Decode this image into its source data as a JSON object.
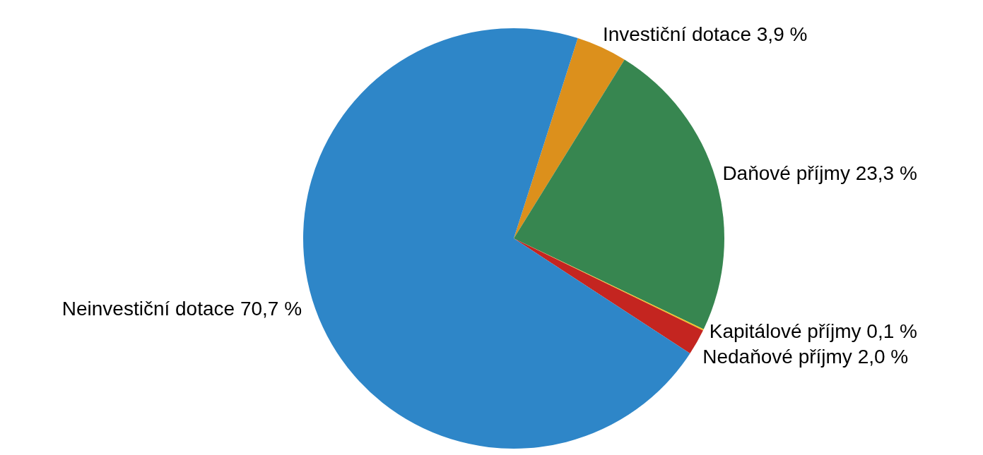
{
  "chart_data": {
    "type": "pie",
    "categories": [
      "Investiční dotace",
      "Daňové příjmy",
      "Kapitálové příjmy",
      "Nedaňové příjmy",
      "Neinvestiční dotace"
    ],
    "values": [
      3.9,
      23.3,
      0.1,
      2.0,
      70.7
    ],
    "value_labels": [
      "3,9 %",
      "23,3 %",
      "0,1 %",
      "2,0 %",
      "70,7 %"
    ],
    "colors": [
      "#dc901c",
      "#378650",
      "#f2c01e",
      "#c42520",
      "#2e86c8"
    ]
  }
}
